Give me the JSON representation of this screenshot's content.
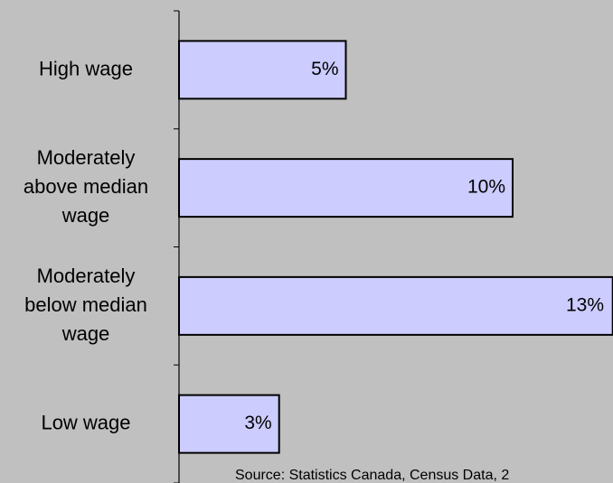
{
  "chart_data": {
    "type": "bar",
    "orientation": "horizontal",
    "categories": [
      "High wage",
      "Moderately above median wage",
      "Moderately below median wage",
      "Low wage"
    ],
    "values": [
      5,
      10,
      13,
      3
    ],
    "value_labels": [
      "5%",
      "10%",
      "13%",
      "3%"
    ],
    "color": "#ccccff",
    "source": "Source: Statistics Canada, Census Data, 2"
  }
}
